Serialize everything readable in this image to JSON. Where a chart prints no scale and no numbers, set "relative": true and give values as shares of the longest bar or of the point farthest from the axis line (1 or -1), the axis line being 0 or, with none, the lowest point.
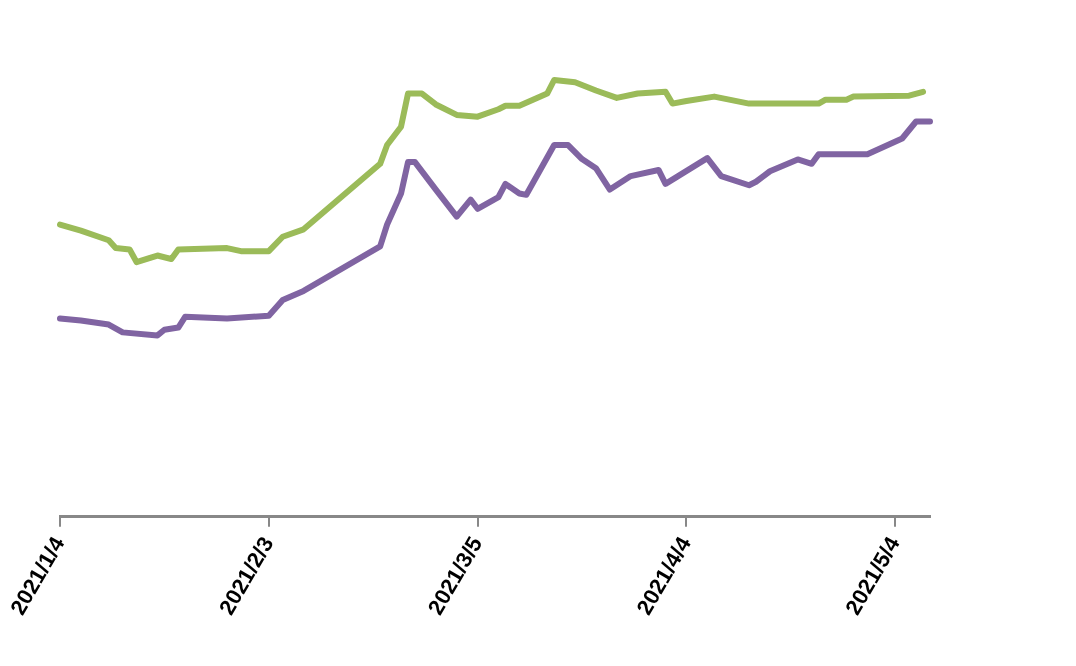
{
  "chart_data": {
    "type": "line",
    "relative": true,
    "grid": false,
    "legend": false,
    "marker": "none",
    "line_style": "solid",
    "tick_labels": "x",
    "xlim": [
      "2021-01-04",
      "2021-05-09"
    ],
    "xticks": [
      {
        "value": "2021-01-04",
        "label": "2021/1/4"
      },
      {
        "value": "2021-02-03",
        "label": "2021/2/3"
      },
      {
        "value": "2021-03-05",
        "label": "2021/3/5"
      },
      {
        "value": "2021-04-04",
        "label": "2021/4/4"
      },
      {
        "value": "2021-05-04",
        "label": "2021/5/4"
      }
    ],
    "series": [
      {
        "color": "#9bbb59",
        "x": [
          "2021-01-04",
          "2021-01-07",
          "2021-01-11",
          "2021-01-12",
          "2021-01-14",
          "2021-01-15",
          "2021-01-18",
          "2021-01-20",
          "2021-01-21",
          "2021-01-28",
          "2021-01-30",
          "2021-02-03",
          "2021-02-05",
          "2021-02-08",
          "2021-02-19",
          "2021-02-20",
          "2021-02-22",
          "2021-02-23",
          "2021-02-25",
          "2021-02-27",
          "2021-03-02",
          "2021-03-05",
          "2021-03-08",
          "2021-03-09",
          "2021-03-11",
          "2021-03-15",
          "2021-03-16",
          "2021-03-19",
          "2021-03-22",
          "2021-03-25",
          "2021-03-28",
          "2021-04-01",
          "2021-04-02",
          "2021-04-04",
          "2021-04-08",
          "2021-04-13",
          "2021-04-23",
          "2021-04-24",
          "2021-04-27",
          "2021-04-28",
          "2021-05-06",
          "2021-05-08"
        ],
        "values": [
          0.669,
          0.655,
          0.633,
          0.615,
          0.612,
          0.583,
          0.598,
          0.59,
          0.612,
          0.615,
          0.608,
          0.608,
          0.641,
          0.658,
          0.808,
          0.851,
          0.893,
          0.969,
          0.969,
          0.944,
          0.92,
          0.916,
          0.933,
          0.941,
          0.941,
          0.969,
          1,
          0.995,
          0.976,
          0.959,
          0.969,
          0.973,
          0.946,
          0.952,
          0.962,
          0.946,
          0.946,
          0.955,
          0.955,
          0.962,
          0.964,
          0.973
        ]
      },
      {
        "color": "#8064a2",
        "x": [
          "2021-01-04",
          "2021-01-07",
          "2021-01-11",
          "2021-01-13",
          "2021-01-18",
          "2021-01-19",
          "2021-01-21",
          "2021-01-22",
          "2021-01-28",
          "2021-02-03",
          "2021-02-05",
          "2021-02-08",
          "2021-02-19",
          "2021-02-20",
          "2021-02-22",
          "2021-02-23",
          "2021-02-24",
          "2021-02-27",
          "2021-03-02",
          "2021-03-04",
          "2021-03-05",
          "2021-03-08",
          "2021-03-09",
          "2021-03-11",
          "2021-03-12",
          "2021-03-16",
          "2021-03-18",
          "2021-03-20",
          "2021-03-22",
          "2021-03-24",
          "2021-03-27",
          "2021-03-31",
          "2021-04-01",
          "2021-04-07",
          "2021-04-09",
          "2021-04-13",
          "2021-04-14",
          "2021-04-16",
          "2021-04-20",
          "2021-04-22",
          "2021-04-23",
          "2021-04-30",
          "2021-05-05",
          "2021-05-07",
          "2021-05-09"
        ],
        "values": [
          0.454,
          0.449,
          0.44,
          0.422,
          0.415,
          0.428,
          0.433,
          0.458,
          0.454,
          0.46,
          0.496,
          0.517,
          0.619,
          0.669,
          0.74,
          0.812,
          0.812,
          0.749,
          0.687,
          0.726,
          0.705,
          0.732,
          0.762,
          0.74,
          0.737,
          0.851,
          0.851,
          0.819,
          0.798,
          0.749,
          0.78,
          0.794,
          0.762,
          0.821,
          0.78,
          0.759,
          0.767,
          0.791,
          0.818,
          0.808,
          0.83,
          0.83,
          0.866,
          0.905,
          0.905
        ]
      }
    ]
  }
}
